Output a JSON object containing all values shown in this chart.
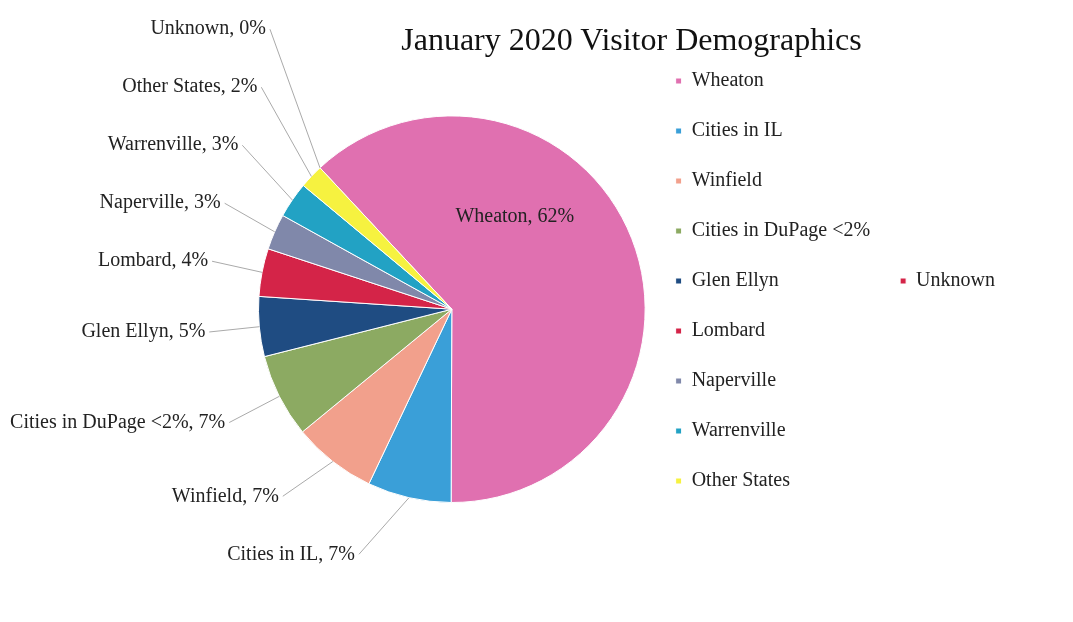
{
  "chart_data": {
    "type": "pie",
    "title": "January 2020 Visitor Demographics",
    "categories": [
      "Wheaton",
      "Cities in IL",
      "Winfield",
      "Cities in DuPage <2%",
      "Glen Ellyn",
      "Lombard",
      "Naperville",
      "Warrenville",
      "Other States",
      "Unknown"
    ],
    "values": [
      62,
      7,
      7,
      7,
      5,
      4,
      3,
      3,
      2,
      0
    ],
    "colors": [
      "#e070b0",
      "#3a9fd8",
      "#f2a08c",
      "#8caa62",
      "#1f4c82",
      "#d42448",
      "#8088aa",
      "#22a2c4",
      "#f6f240",
      "#d42448"
    ],
    "value_labels": [
      "Wheaton, 62%",
      "Cities in IL, 7%",
      "Winfield, 7%",
      "Cities in DuPage <2%, 7%",
      "Glen Ellyn, 5%",
      "Lombard, 4%",
      "Naperville, 3%",
      "Warrenville, 3%",
      "Other States, 2%",
      "Unknown, 0%"
    ],
    "legend": "right"
  }
}
